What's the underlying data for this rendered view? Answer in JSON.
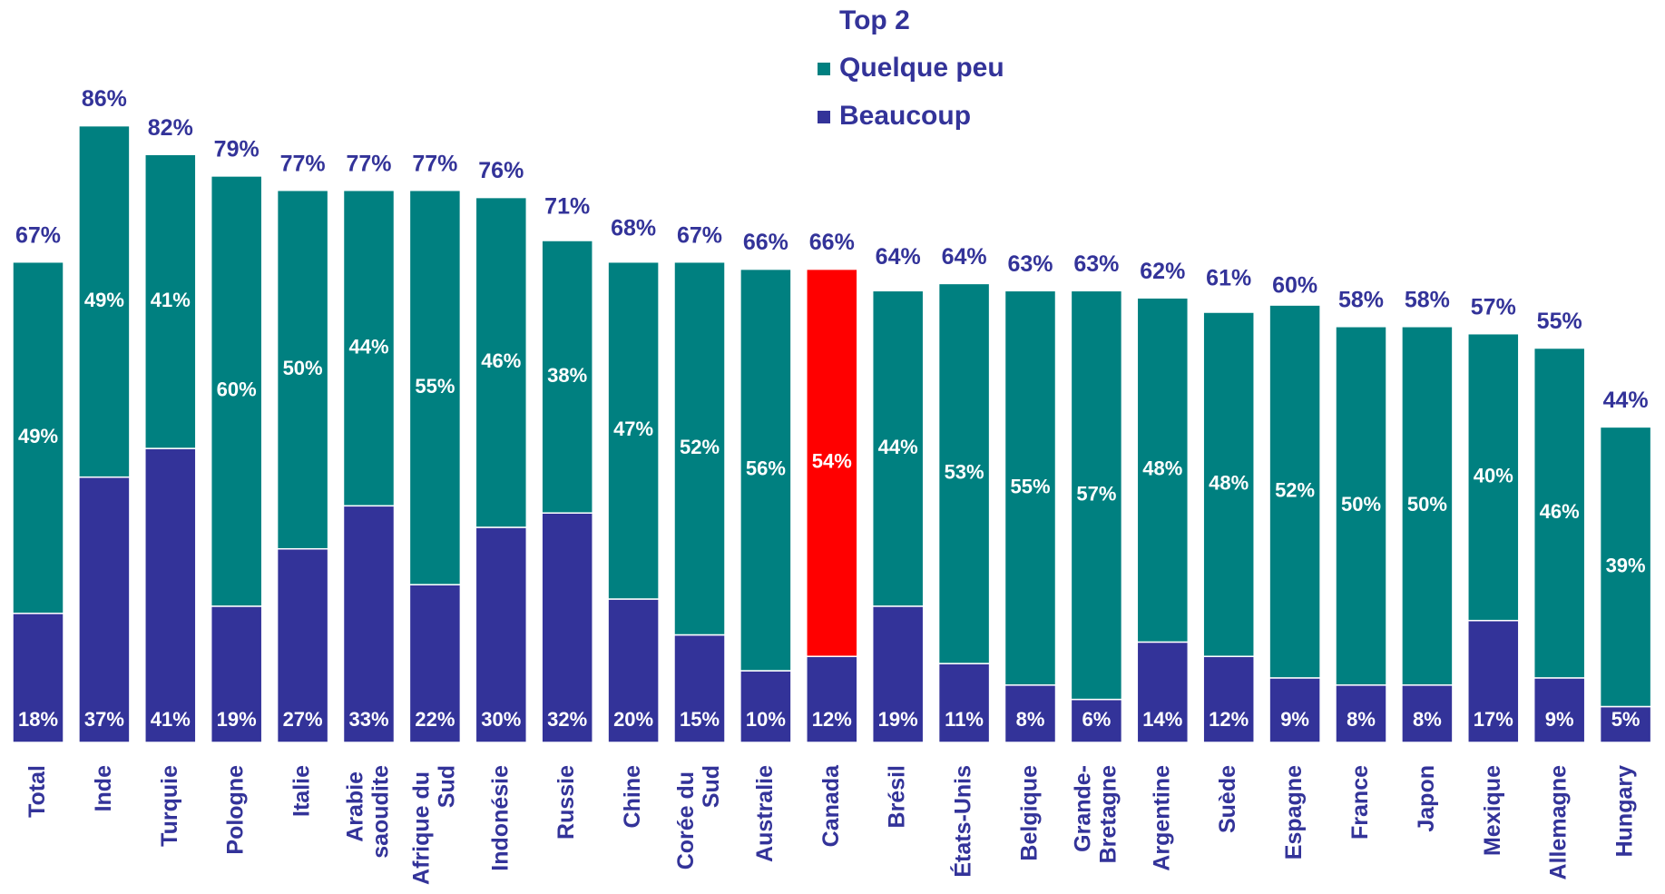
{
  "chart_data": {
    "type": "stacked_bar",
    "legend_title": "Top 2",
    "categories": [
      "Total",
      "Inde",
      "Turquie",
      "Pologne",
      "Italie",
      "Arabie saoudite",
      "Afrique du Sud",
      "Indonésie",
      "Russie",
      "Chine",
      "Corée du Sud",
      "Australie",
      "Canada",
      "Brésil",
      "États-Unis",
      "Belgique",
      "Grande-Bretagne",
      "Argentine",
      "Suède",
      "Espagne",
      "France",
      "Japon",
      "Mexique",
      "Allemagne",
      "Hungary"
    ],
    "series": [
      {
        "name": "Beaucoup",
        "color": "#333399",
        "values": [
          18,
          37,
          41,
          19,
          27,
          33,
          22,
          30,
          32,
          20,
          15,
          10,
          12,
          19,
          11,
          8,
          6,
          14,
          12,
          9,
          8,
          8,
          17,
          9,
          5
        ],
        "value_labels": [
          "18%",
          "37%",
          "41%",
          "19%",
          "27%",
          "33%",
          "22%",
          "30%",
          "32%",
          "20%",
          "15%",
          "10%",
          "12%",
          "19%",
          "11%",
          "8%",
          "6%",
          "14%",
          "12%",
          "9%",
          "8%",
          "8%",
          "17%",
          "9%",
          "5%"
        ]
      },
      {
        "name": "Quelque peu",
        "color": "#008080",
        "values": [
          49,
          49,
          41,
          60,
          50,
          44,
          55,
          46,
          38,
          47,
          52,
          56,
          54,
          44,
          53,
          55,
          57,
          48,
          48,
          52,
          50,
          50,
          40,
          46,
          39
        ],
        "value_labels": [
          "49%",
          "49%",
          "41%",
          "60%",
          "50%",
          "44%",
          "55%",
          "46%",
          "38%",
          "47%",
          "52%",
          "56%",
          "54%",
          "44%",
          "53%",
          "55%",
          "57%",
          "48%",
          "48%",
          "52%",
          "50%",
          "50%",
          "40%",
          "46%",
          "39%"
        ]
      }
    ],
    "totals": [
      67,
      86,
      82,
      79,
      77,
      77,
      77,
      76,
      71,
      68,
      67,
      66,
      66,
      64,
      64,
      63,
      63,
      62,
      61,
      60,
      58,
      58,
      57,
      55,
      44
    ],
    "total_labels": [
      "67%",
      "86%",
      "82%",
      "79%",
      "77%",
      "77%",
      "77%",
      "76%",
      "71%",
      "68%",
      "67%",
      "66%",
      "66%",
      "64%",
      "64%",
      "63%",
      "63%",
      "62%",
      "61%",
      "60%",
      "58%",
      "58%",
      "57%",
      "55%",
      "44%"
    ],
    "highlight_category": "Canada",
    "highlight_color": "#ff0000",
    "ylim": [
      0,
      100
    ]
  }
}
